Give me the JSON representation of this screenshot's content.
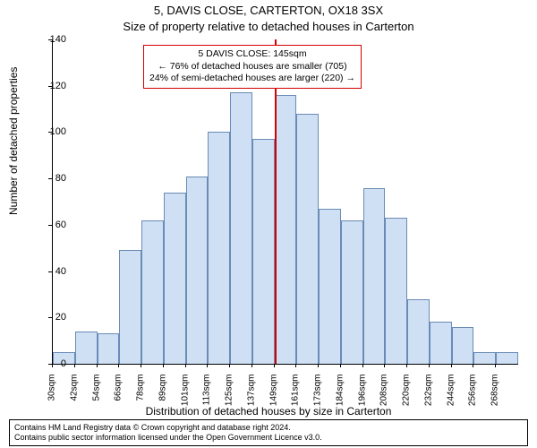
{
  "title_main": "5, DAVIS CLOSE, CARTERTON, OX18 3SX",
  "title_sub": "Size of property relative to detached houses in Carterton",
  "ylabel": "Number of detached properties",
  "xlabel": "Distribution of detached houses by size in Carterton",
  "footer_line1": "Contains HM Land Registry data © Crown copyright and database right 2024.",
  "footer_line2": "Contains public sector information licensed under the Open Government Licence v3.0.",
  "chart": {
    "type": "histogram",
    "background_color": "#ffffff",
    "bar_fill": "#cfe0f4",
    "bar_stroke": "#6a8bb5",
    "ref_line_color": "#d40000",
    "anno_border_color": "#d40000",
    "axis_color": "#000000",
    "ylim": [
      0,
      140
    ],
    "ytick_step": 20,
    "yticks": [
      0,
      20,
      40,
      60,
      80,
      100,
      120,
      140
    ],
    "xtick_labels": [
      "30sqm",
      "42sqm",
      "54sqm",
      "66sqm",
      "78sqm",
      "89sqm",
      "101sqm",
      "113sqm",
      "125sqm",
      "137sqm",
      "149sqm",
      "161sqm",
      "173sqm",
      "184sqm",
      "196sqm",
      "208sqm",
      "220sqm",
      "232sqm",
      "244sqm",
      "256sqm",
      "268sqm"
    ],
    "values": [
      5,
      14,
      13,
      49,
      62,
      74,
      81,
      100,
      117,
      97,
      116,
      108,
      67,
      62,
      76,
      63,
      28,
      18,
      16,
      5,
      5
    ],
    "ref_line_bin_index": 10,
    "annotation": {
      "line1": "5 DAVIS CLOSE: 145sqm",
      "line2": "← 76% of detached houses are smaller (705)",
      "line3": "24% of semi-detached houses are larger (220) →"
    }
  }
}
